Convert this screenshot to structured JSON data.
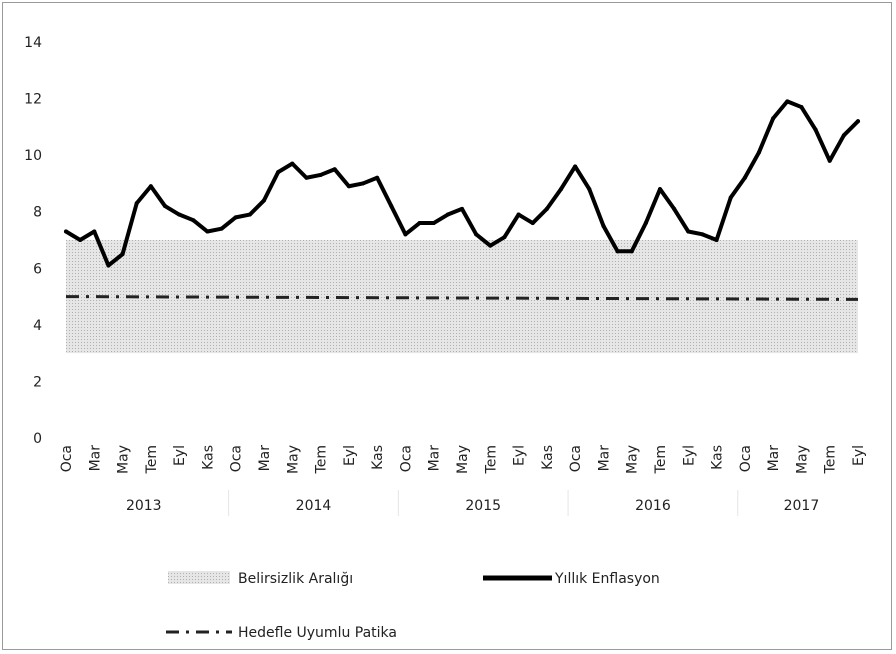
{
  "chart_data": {
    "type": "line",
    "ylim": [
      0,
      14
    ],
    "yticks": [
      "0",
      "2",
      "4",
      "6",
      "8",
      "10",
      "12",
      "14"
    ],
    "x_tick_labels": [
      "Oca",
      "Mar",
      "May",
      "Tem",
      "Eyl",
      "Kas",
      "Oca",
      "Mar",
      "May",
      "Tem",
      "Eyl",
      "Kas",
      "Oca",
      "Mar",
      "May",
      "Tem",
      "Eyl",
      "Kas",
      "Oca",
      "Mar",
      "May",
      "Tem",
      "Eyl",
      "Kas",
      "Oca",
      "Mar",
      "May",
      "Tem",
      "Eyl"
    ],
    "years": [
      "2013",
      "2014",
      "2015",
      "2016",
      "2017"
    ],
    "grid": false,
    "legend_position": "bottom",
    "band": {
      "name": "Belirsizlik Aralığı",
      "lower": 3,
      "upper": 7,
      "x_start": "2013-01",
      "x_end": "2017-09",
      "color": "#d9d9d9"
    },
    "target_path": {
      "name": "Hedefle Uyumlu Patika",
      "x_start": "2013-01",
      "x_end": "2017-09",
      "y_start": 5.0,
      "y_end": 4.9,
      "color": "#222222"
    },
    "series": [
      {
        "name": "Yıllık Enflasyon",
        "color": "#000000",
        "x": [
          "2013-01",
          "2013-02",
          "2013-03",
          "2013-04",
          "2013-05",
          "2013-06",
          "2013-07",
          "2013-08",
          "2013-09",
          "2013-10",
          "2013-11",
          "2013-12",
          "2014-01",
          "2014-02",
          "2014-03",
          "2014-04",
          "2014-05",
          "2014-06",
          "2014-07",
          "2014-08",
          "2014-09",
          "2014-10",
          "2014-11",
          "2014-12",
          "2015-01",
          "2015-02",
          "2015-03",
          "2015-04",
          "2015-05",
          "2015-06",
          "2015-07",
          "2015-08",
          "2015-09",
          "2015-10",
          "2015-11",
          "2015-12",
          "2016-01",
          "2016-02",
          "2016-03",
          "2016-04",
          "2016-05",
          "2016-06",
          "2016-07",
          "2016-08",
          "2016-09",
          "2016-10",
          "2016-11",
          "2016-12",
          "2017-01",
          "2017-02",
          "2017-03",
          "2017-04",
          "2017-05",
          "2017-06",
          "2017-07",
          "2017-08",
          "2017-09"
        ],
        "values": [
          7.3,
          7.0,
          7.3,
          6.1,
          6.5,
          8.3,
          8.9,
          8.2,
          7.9,
          7.7,
          7.3,
          7.4,
          7.8,
          7.9,
          8.4,
          9.4,
          9.7,
          9.2,
          9.3,
          9.5,
          8.9,
          9.0,
          9.2,
          8.2,
          7.2,
          7.6,
          7.6,
          7.9,
          8.1,
          7.2,
          6.8,
          7.1,
          7.9,
          7.6,
          8.1,
          8.8,
          9.6,
          8.8,
          7.5,
          6.6,
          6.6,
          7.6,
          8.8,
          8.1,
          7.3,
          7.2,
          7.0,
          8.5,
          9.2,
          10.1,
          11.3,
          11.9,
          11.7,
          10.9,
          9.8,
          10.7,
          11.2
        ]
      }
    ]
  }
}
